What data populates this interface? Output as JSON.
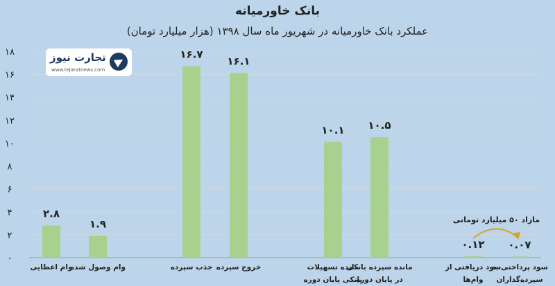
{
  "header": {
    "title": "بانک خاورمیانه",
    "subtitle": "عملکرد بانک خاورمیانه در شهریور ماه سال ۱۳۹۸ (هزار میلیارد تومان)"
  },
  "logo": {
    "name": "تجارت نیوز",
    "url_text": "www.tejaratnews.com"
  },
  "chart_data": {
    "type": "bar",
    "title": "بانک خاورمیانه",
    "subtitle": "عملکرد بانک خاورمیانه در شهریور ماه سال ۱۳۹۸ (هزار میلیارد تومان)",
    "xlabel": "",
    "ylabel": "",
    "ylim": [
      0,
      18
    ],
    "yticks": [
      0,
      2,
      4,
      6,
      8,
      10,
      12,
      14,
      16,
      18
    ],
    "ytick_labels": [
      "۰",
      "۲",
      "۴",
      "۶",
      "۸",
      "۱۰",
      "۱۲",
      "۱۴",
      "۱۶",
      "۱۸"
    ],
    "grid": true,
    "bar_color": "#a9d18e",
    "categories": [
      [
        "وام اعطایی"
      ],
      [
        "وام وصول شده"
      ],
      [
        "جذب سپرده"
      ],
      [
        "خروج سپرده"
      ],
      [
        "مانده تسهیلات",
        "بانکی پایان دوره"
      ],
      [
        "مانده سپرده بانکی",
        "در پایان دوره"
      ],
      [
        "سود دریافتی از",
        "وام‌ها"
      ],
      [
        "سود پرداختی به",
        "سپرده‌گذاران"
      ]
    ],
    "values": [
      2.8,
      1.9,
      16.7,
      16.1,
      10.1,
      10.5,
      0.12,
      0.07
    ],
    "value_labels": [
      "۲.۸",
      "۱.۹",
      "۱۶.۷",
      "۱۶.۱",
      "۱۰.۱",
      "۱۰.۵",
      "۰.۱۲",
      "۰.۰۷"
    ],
    "annotations": [
      {
        "text": "مازاد ۵۰ میلیارد تومانی",
        "between": [
          6,
          7
        ]
      }
    ]
  }
}
